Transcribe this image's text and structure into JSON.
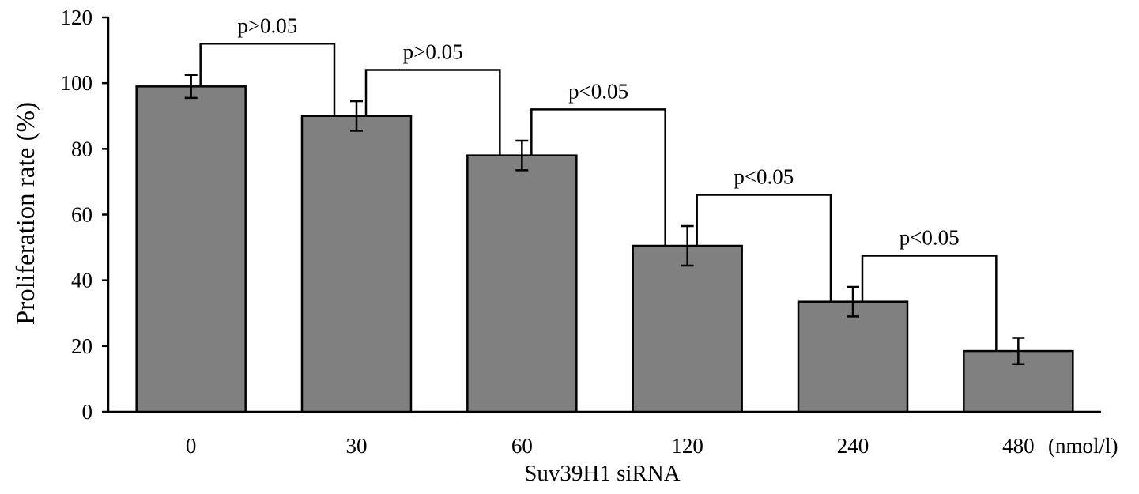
{
  "chart_data": {
    "type": "bar",
    "categories": [
      "0",
      "30",
      "60",
      "120",
      "240",
      "480"
    ],
    "values": [
      99,
      90,
      78,
      50.5,
      33.5,
      18.5
    ],
    "errors": [
      3.5,
      4.5,
      4.5,
      6,
      4.5,
      4
    ],
    "title": "",
    "xlabel": "Suv39H1 siRNA",
    "x_unit": "(nmol/l)",
    "ylabel": "Proliferation rate (%)",
    "ylim": [
      0,
      120
    ],
    "yticks": [
      0,
      20,
      40,
      60,
      80,
      100,
      120
    ],
    "grid": false,
    "legend": "none",
    "bar_color": "#808080",
    "bar_stroke": "#000000",
    "annotations": [
      {
        "from": 0,
        "to": 1,
        "label": "p>0.05"
      },
      {
        "from": 1,
        "to": 2,
        "label": "p>0.05"
      },
      {
        "from": 2,
        "to": 3,
        "label": "p<0.05"
      },
      {
        "from": 3,
        "to": 4,
        "label": "p<0.05"
      },
      {
        "from": 4,
        "to": 5,
        "label": "p<0.05"
      }
    ]
  }
}
